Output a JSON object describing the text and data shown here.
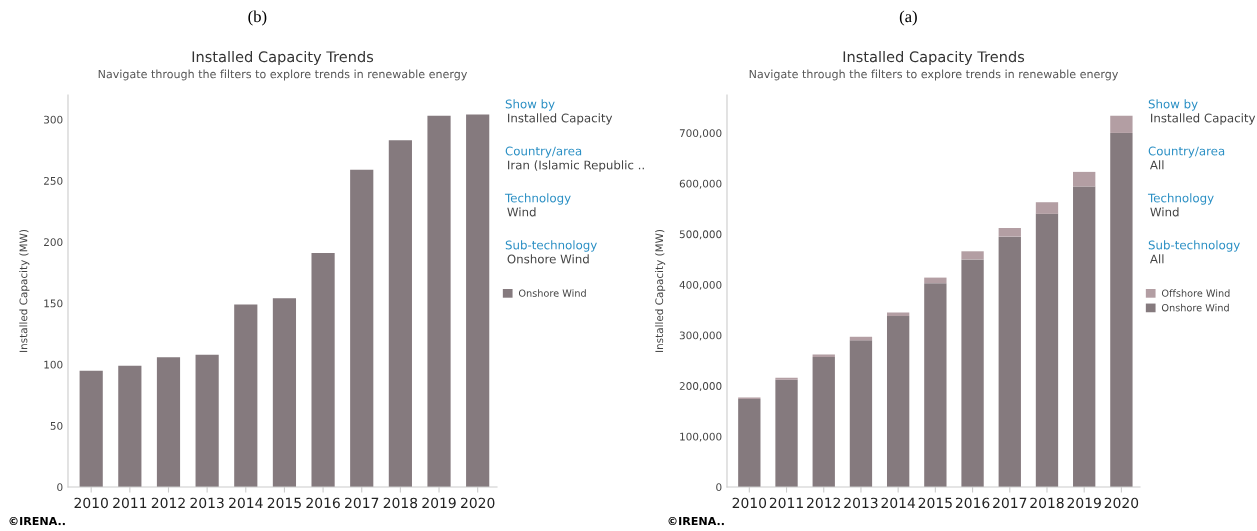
{
  "chart_data": [
    {
      "type": "bar",
      "title": "Installed Capacity Trends",
      "subtitle": "Navigate through the filters to explore trends in renewable energy",
      "ylabel": "Installed Capacity (MW)",
      "categories": [
        "2010",
        "2011",
        "2012",
        "2013",
        "2014",
        "2015",
        "2016",
        "2017",
        "2018",
        "2019",
        "2020"
      ],
      "series": [
        {
          "name": "Onshore Wind",
          "color": "#857a7e",
          "values": [
            95,
            99,
            106,
            108,
            149,
            154,
            191,
            259,
            283,
            303,
            304
          ]
        }
      ],
      "ylim": [
        0,
        320
      ],
      "yticks": [
        0,
        50,
        100,
        150,
        200,
        250,
        300
      ],
      "grid": false,
      "legend": "right",
      "annotations": [
        "(b)",
        "©IRENA..",
        "Show by",
        "Installed Capacity",
        "Country/area",
        "Iran (Islamic Republic ..",
        "Technology",
        "Wind",
        "Sub-technology",
        "Onshore Wind"
      ]
    },
    {
      "type": "bar",
      "title": "Installed Capacity Trends",
      "subtitle": "Navigate through the filters to explore trends in renewable energy",
      "ylabel": "Installed Capacity (MW)",
      "categories": [
        "2010",
        "2011",
        "2012",
        "2013",
        "2014",
        "2015",
        "2016",
        "2017",
        "2018",
        "2019",
        "2020"
      ],
      "stacked": true,
      "series": [
        {
          "name": "Onshore Wind",
          "color": "#857a7e",
          "values": [
            174000,
            212000,
            257000,
            290000,
            338000,
            403000,
            450000,
            495000,
            540000,
            594000,
            700000
          ]
        },
        {
          "name": "Offshore Wind",
          "color": "#b39ea3",
          "values": [
            3000,
            4000,
            5000,
            7000,
            7000,
            11000,
            16000,
            17000,
            23000,
            29000,
            34000
          ]
        }
      ],
      "ylim": [
        0,
        775000
      ],
      "yticks": [
        0,
        {
          "value": 100000,
          "label": "100,000"
        },
        {
          "value": 200000,
          "label": "200,000"
        },
        {
          "value": 300000,
          "label": "300,000"
        },
        {
          "value": 400000,
          "label": "400,000"
        },
        {
          "value": 500000,
          "label": "500,000"
        },
        {
          "value": 600000,
          "label": "600,000"
        },
        {
          "value": 700000,
          "label": "700,000"
        }
      ],
      "grid": false,
      "legend": "right",
      "annotations": [
        "(a)",
        "©IRENA..",
        "Show by",
        "Installed Capacity",
        "Country/area",
        "All",
        "Technology",
        "Wind",
        "Sub-technology",
        "All"
      ]
    }
  ]
}
